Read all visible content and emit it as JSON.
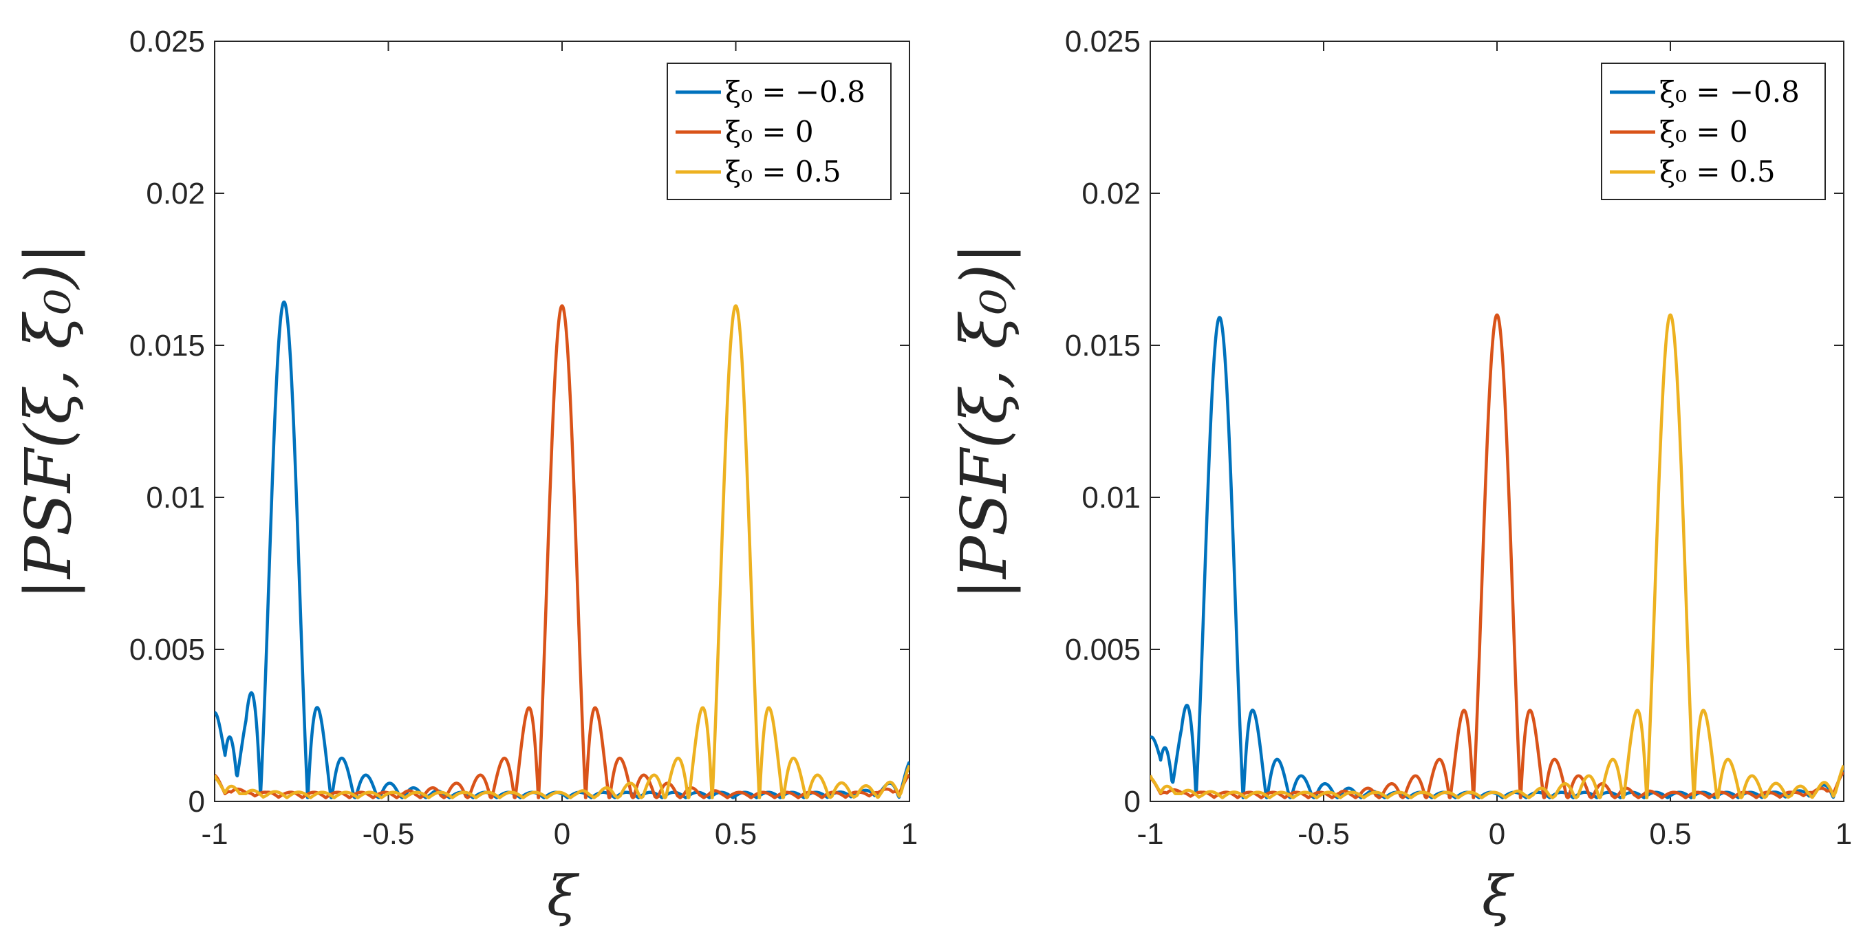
{
  "chart_data": [
    {
      "type": "line",
      "title": "",
      "xlabel": "ξ",
      "ylabel": "|PSF(ξ, ξ₀)|",
      "xlim": [
        -1,
        1
      ],
      "ylim": [
        0,
        0.025
      ],
      "xticks": [
        -1,
        -0.5,
        0,
        0.5,
        1
      ],
      "xtick_labels": [
        "-1",
        "-0.5",
        "0",
        "0.5",
        "1"
      ],
      "yticks": [
        0,
        0.005,
        0.01,
        0.015,
        0.02,
        0.025
      ],
      "ytick_labels": [
        "0",
        "0.005",
        "0.01",
        "0.015",
        "0.02",
        "0.025"
      ],
      "legend_position": "top-right",
      "series": [
        {
          "name": "ξ₀ = −0.8",
          "color": "#0072BD",
          "center": -0.8,
          "peak": 0.0164,
          "side": [
            0.0039,
            0.0036
          ],
          "edge_left": 0.0027,
          "edge_right": 0.001
        },
        {
          "name": "ξ₀ = 0",
          "color": "#D95319",
          "center": 0.0,
          "peak": 0.0163,
          "side": [
            0.0036,
            0.0036
          ],
          "edge_left": 0.0006,
          "edge_right": 0.0006
        },
        {
          "name": "ξ₀ = 0.5",
          "color": "#EDB120",
          "center": 0.5,
          "peak": 0.0163,
          "side": [
            0.0036,
            0.0036
          ],
          "edge_left": 0.0007,
          "edge_right": 0.0009
        }
      ]
    },
    {
      "type": "line",
      "title": "",
      "xlabel": "ξ",
      "ylabel": "|PSF(ξ, ξ₀)|",
      "xlim": [
        -1,
        1
      ],
      "ylim": [
        0,
        0.025
      ],
      "xticks": [
        -1,
        -0.5,
        0,
        0.5,
        1
      ],
      "xtick_labels": [
        "-1",
        "-0.5",
        "0",
        "0.5",
        "1"
      ],
      "yticks": [
        0,
        0.005,
        0.01,
        0.015,
        0.02,
        0.025
      ],
      "ytick_labels": [
        "0",
        "0.005",
        "0.01",
        "0.015",
        "0.02",
        "0.025"
      ],
      "legend_position": "top-right",
      "series": [
        {
          "name": "ξ₀ = −0.8",
          "color": "#0072BD",
          "center": -0.8,
          "peak": 0.0159,
          "side": [
            0.0035,
            0.0035
          ],
          "edge_left": 0.0019,
          "edge_right": 0.0008
        },
        {
          "name": "ξ₀ = 0",
          "color": "#D95319",
          "center": 0.0,
          "peak": 0.016,
          "side": [
            0.0035,
            0.0035
          ],
          "edge_left": 0.0005,
          "edge_right": 0.0007
        },
        {
          "name": "ξ₀ = 0.5",
          "color": "#EDB120",
          "center": 0.5,
          "peak": 0.016,
          "side": [
            0.0035,
            0.0035
          ],
          "edge_left": 0.0007,
          "edge_right": 0.0009
        }
      ]
    }
  ]
}
